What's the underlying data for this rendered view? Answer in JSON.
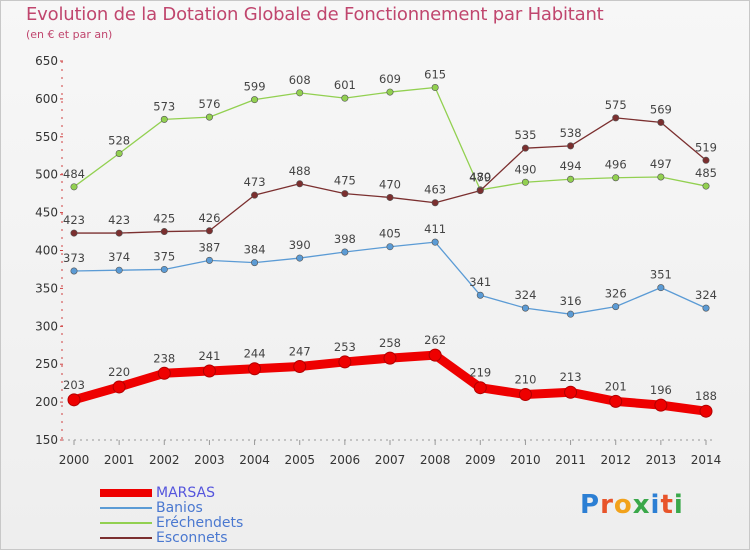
{
  "header": {
    "title": "Evolution de la Dotation Globale de Fonctionnement par Habitant",
    "subtitle": "(en € et par an)"
  },
  "logo": {
    "text": "Proxiti",
    "colors": [
      "#2c7fd4",
      "#e8542a",
      "#f2a21b",
      "#3aa84a",
      "#2c7fd4",
      "#e8542a",
      "#3aa84a"
    ]
  },
  "chart_data": {
    "type": "line",
    "title": "Evolution de la Dotation Globale de Fonctionnement par Habitant",
    "subtitle": "(en € et par an)",
    "xlabel": "",
    "ylabel": "",
    "ylim": [
      150,
      650
    ],
    "yticks": [
      150,
      200,
      250,
      300,
      350,
      400,
      450,
      500,
      550,
      600,
      650
    ],
    "grid": false,
    "legend_position": "bottom-left",
    "categories": [
      "2000",
      "2001",
      "2002",
      "2003",
      "2004",
      "2005",
      "2006",
      "2007",
      "2008",
      "2009",
      "2010",
      "2011",
      "2012",
      "2013",
      "2014"
    ],
    "series": [
      {
        "name": "MARSAS",
        "color": "#ee0000",
        "emphasis": "thick",
        "values": [
          203,
          220,
          238,
          241,
          244,
          247,
          253,
          258,
          262,
          219,
          210,
          213,
          201,
          196,
          188
        ]
      },
      {
        "name": "Banios",
        "color": "#5b9bd5",
        "emphasis": "normal",
        "values": [
          373,
          374,
          375,
          387,
          384,
          390,
          398,
          405,
          411,
          341,
          324,
          316,
          326,
          351,
          324
        ]
      },
      {
        "name": "Eréchendets",
        "color": "#92d050",
        "emphasis": "normal",
        "values": [
          484,
          528,
          573,
          576,
          599,
          608,
          601,
          609,
          615,
          480,
          490,
          494,
          496,
          497,
          485
        ]
      },
      {
        "name": "Esconnets",
        "color": "#7b2f2f",
        "emphasis": "normal",
        "values": [
          423,
          423,
          425,
          426,
          473,
          488,
          475,
          470,
          463,
          479,
          535,
          538,
          575,
          569,
          519
        ]
      }
    ]
  }
}
